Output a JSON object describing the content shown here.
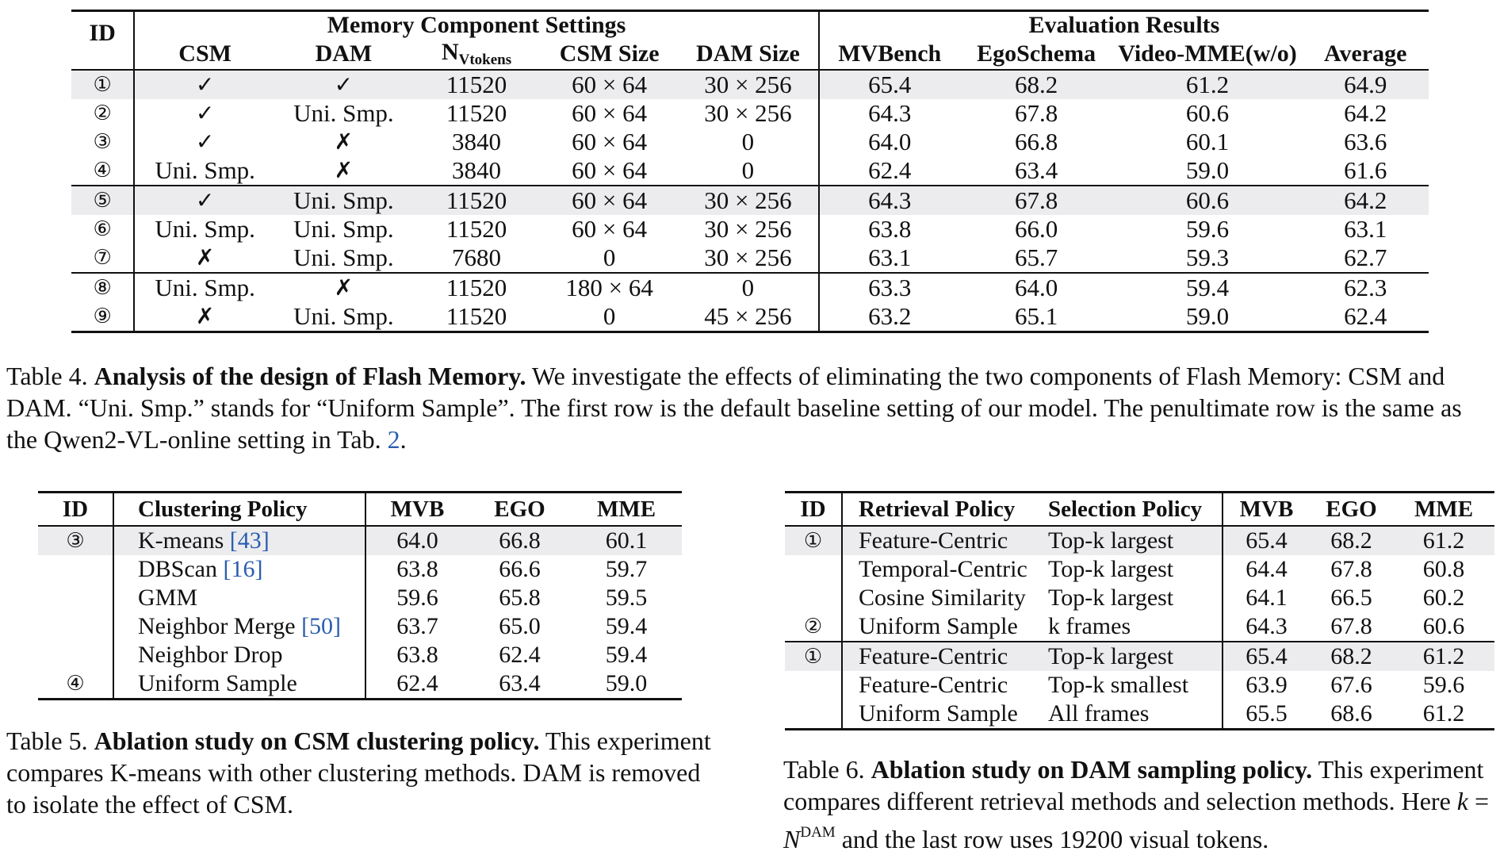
{
  "table4": {
    "group_headers": {
      "id": "ID",
      "settings": "Memory Component Settings",
      "results": "Evaluation Results"
    },
    "columns": [
      "CSM",
      "DAM",
      "N",
      "Vtokens",
      "CSM Size",
      "DAM Size",
      "MVBench",
      "EgoSchema",
      "Video-MME(w/o)",
      "Average"
    ],
    "rows": [
      {
        "id": "①",
        "csm": "✓",
        "dam": "✓",
        "n": "11520",
        "csm_size": "60 × 64",
        "dam_size": "30 × 256",
        "mvb": "65.4",
        "ego": "68.2",
        "mme": "61.2",
        "avg": "64.9"
      },
      {
        "id": "②",
        "csm": "✓",
        "dam": "Uni. Smp.",
        "n": "11520",
        "csm_size": "60 × 64",
        "dam_size": "30 × 256",
        "mvb": "64.3",
        "ego": "67.8",
        "mme": "60.6",
        "avg": "64.2"
      },
      {
        "id": "③",
        "csm": "✓",
        "dam": "✗",
        "n": "3840",
        "csm_size": "60 × 64",
        "dam_size": "0",
        "mvb": "64.0",
        "ego": "66.8",
        "mme": "60.1",
        "avg": "63.6"
      },
      {
        "id": "④",
        "csm": "Uni. Smp.",
        "dam": "✗",
        "n": "3840",
        "csm_size": "60 × 64",
        "dam_size": "0",
        "mvb": "62.4",
        "ego": "63.4",
        "mme": "59.0",
        "avg": "61.6"
      },
      {
        "id": "⑤",
        "csm": "✓",
        "dam": "Uni. Smp.",
        "n": "11520",
        "csm_size": "60 × 64",
        "dam_size": "30 × 256",
        "mvb": "64.3",
        "ego": "67.8",
        "mme": "60.6",
        "avg": "64.2"
      },
      {
        "id": "⑥",
        "csm": "Uni. Smp.",
        "dam": "Uni. Smp.",
        "n": "11520",
        "csm_size": "60 × 64",
        "dam_size": "30 × 256",
        "mvb": "63.8",
        "ego": "66.0",
        "mme": "59.6",
        "avg": "63.1"
      },
      {
        "id": "⑦",
        "csm": "✗",
        "dam": "Uni. Smp.",
        "n": "7680",
        "csm_size": "0",
        "dam_size": "30 × 256",
        "mvb": "63.1",
        "ego": "65.7",
        "mme": "59.3",
        "avg": "62.7"
      },
      {
        "id": "⑧",
        "csm": "Uni. Smp.",
        "dam": "✗",
        "n": "11520",
        "csm_size": "180 × 64",
        "dam_size": "0",
        "mvb": "63.3",
        "ego": "64.0",
        "mme": "59.4",
        "avg": "62.3"
      },
      {
        "id": "⑨",
        "csm": "✗",
        "dam": "Uni. Smp.",
        "n": "11520",
        "csm_size": "0",
        "dam_size": "45 × 256",
        "mvb": "63.2",
        "ego": "65.1",
        "mme": "59.0",
        "avg": "62.4"
      }
    ],
    "caption": {
      "label": "Table 4.",
      "title": "Analysis of the design of Flash Memory.",
      "text": " We investigate the effects of eliminating the two components of Flash Memory: CSM and DAM. “Uni. Smp.” stands for “Uniform Sample”. The first row is the default baseline setting of our model. The penultimate row is the same as the Qwen2-VL-online setting in Tab. ",
      "ref": "2",
      "end": "."
    }
  },
  "table5": {
    "columns": [
      "ID",
      "Clustering Policy",
      "MVB",
      "EGO",
      "MME"
    ],
    "rows": [
      {
        "id": "③",
        "policy": "K-means ",
        "cite": "[43]",
        "mvb": "64.0",
        "ego": "66.8",
        "mme": "60.1"
      },
      {
        "id": "",
        "policy": "DBScan ",
        "cite": "[16]",
        "mvb": "63.8",
        "ego": "66.6",
        "mme": "59.7"
      },
      {
        "id": "",
        "policy": "GMM",
        "cite": "",
        "mvb": "59.6",
        "ego": "65.8",
        "mme": "59.5"
      },
      {
        "id": "",
        "policy": "Neighbor Merge ",
        "cite": "[50]",
        "mvb": "63.7",
        "ego": "65.0",
        "mme": "59.4"
      },
      {
        "id": "",
        "policy": "Neighbor Drop",
        "cite": "",
        "mvb": "63.8",
        "ego": "62.4",
        "mme": "59.4"
      },
      {
        "id": "④",
        "policy": "Uniform Sample",
        "cite": "",
        "mvb": "62.4",
        "ego": "63.4",
        "mme": "59.0"
      }
    ],
    "caption": {
      "label": "Table 5.",
      "title": "Ablation study on CSM clustering policy.",
      "text": " This experiment compares K-means with other clustering methods. DAM is removed to isolate the effect of CSM."
    }
  },
  "table6": {
    "columns": [
      "ID",
      "Retrieval Policy",
      "Selection Policy",
      "MVB",
      "EGO",
      "MME"
    ],
    "rows": [
      {
        "id": "①",
        "retrieval": "Feature-Centric",
        "selection": "Top-k largest",
        "mvb": "65.4",
        "ego": "68.2",
        "mme": "61.2"
      },
      {
        "id": "",
        "retrieval": "Temporal-Centric",
        "selection": "Top-k largest",
        "mvb": "64.4",
        "ego": "67.8",
        "mme": "60.8"
      },
      {
        "id": "",
        "retrieval": "Cosine Similarity",
        "selection": "Top-k largest",
        "mvb": "64.1",
        "ego": "66.5",
        "mme": "60.2"
      },
      {
        "id": "②",
        "retrieval": "Uniform Sample",
        "selection": "k frames",
        "mvb": "64.3",
        "ego": "67.8",
        "mme": "60.6"
      },
      {
        "id": "①",
        "retrieval": "Feature-Centric",
        "selection": "Top-k largest",
        "mvb": "65.4",
        "ego": "68.2",
        "mme": "61.2"
      },
      {
        "id": "",
        "retrieval": "Feature-Centric",
        "selection": "Top-k smallest",
        "mvb": "63.9",
        "ego": "67.6",
        "mme": "59.6"
      },
      {
        "id": "",
        "retrieval": "Uniform Sample",
        "selection": "All frames",
        "mvb": "65.5",
        "ego": "68.6",
        "mme": "61.2"
      }
    ],
    "caption": {
      "label": "Table 6.",
      "title": "Ablation study on DAM sampling policy.",
      "text1": " This experiment compares different retrieval methods and selection methods. Here ",
      "k": "k",
      "eq": " = ",
      "N": "N",
      "sup": "DAM",
      "text2": " and the last row uses 19200 visual tokens."
    }
  },
  "colors": {
    "highlight": "#ececef",
    "citation": "#2a5db0",
    "text": "#111111"
  }
}
